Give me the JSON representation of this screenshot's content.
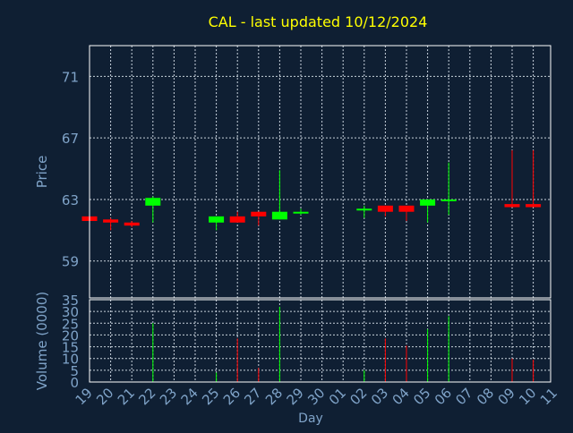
{
  "title": "CAL - last updated 10/12/2024",
  "colors": {
    "background": "#0f1f33",
    "title": "#ffff00",
    "axis_text": "#7fa3c8",
    "grid": "#c8d2dc",
    "frame": "#ffffff",
    "up": "#00ff00",
    "down": "#ff0000"
  },
  "chart_data": [
    {
      "type": "candlestick",
      "title": "CAL - last updated 10/12/2024",
      "xlabel": "",
      "ylabel": "Price",
      "ylim": [
        56.6,
        73.0
      ],
      "yticks": [
        59,
        63,
        67,
        71
      ],
      "grid": true,
      "categories": [
        "19",
        "20",
        "21",
        "22",
        "23",
        "24",
        "25",
        "26",
        "27",
        "28",
        "29",
        "30",
        "01",
        "02",
        "03",
        "04",
        "05",
        "06",
        "07",
        "08",
        "09",
        "10",
        "11"
      ],
      "candles": [
        {
          "day": "19",
          "open": 61.9,
          "close": 61.6,
          "high": 61.9,
          "low": 61.6
        },
        {
          "day": "20",
          "open": 61.7,
          "close": 61.5,
          "high": 61.8,
          "low": 61.0
        },
        {
          "day": "21",
          "open": 61.5,
          "close": 61.3,
          "high": 61.6,
          "low": 61.2
        },
        {
          "day": "22",
          "open": 62.6,
          "close": 63.1,
          "high": 63.2,
          "low": 61.5
        },
        {
          "day": "25",
          "open": 61.5,
          "close": 61.9,
          "high": 61.9,
          "low": 61.0
        },
        {
          "day": "26",
          "open": 61.9,
          "close": 61.5,
          "high": 62.2,
          "low": 61.5
        },
        {
          "day": "27",
          "open": 62.2,
          "close": 61.9,
          "high": 62.2,
          "low": 61.3
        },
        {
          "day": "28",
          "open": 61.7,
          "close": 62.2,
          "high": 64.9,
          "low": 61.7
        },
        {
          "day": "29",
          "open": 62.1,
          "close": 62.2,
          "high": 62.4,
          "low": 62.0
        },
        {
          "day": "02",
          "open": 62.3,
          "close": 62.4,
          "high": 62.6,
          "low": 61.8
        },
        {
          "day": "03",
          "open": 62.6,
          "close": 62.2,
          "high": 62.6,
          "low": 61.9
        },
        {
          "day": "04",
          "open": 62.6,
          "close": 62.2,
          "high": 62.6,
          "low": 61.6
        },
        {
          "day": "05",
          "open": 62.6,
          "close": 63.0,
          "high": 63.0,
          "low": 61.5
        },
        {
          "day": "06",
          "open": 62.9,
          "close": 63.0,
          "high": 65.4,
          "low": 62.0
        },
        {
          "day": "09",
          "open": 62.7,
          "close": 62.5,
          "high": 66.2,
          "low": 62.5
        },
        {
          "day": "10",
          "open": 62.7,
          "close": 62.5,
          "high": 66.2,
          "low": 62.5
        }
      ]
    },
    {
      "type": "bar",
      "xlabel": "Day",
      "ylabel": "Volume (0000)",
      "ylim": [
        0,
        35
      ],
      "yticks": [
        0,
        5,
        10,
        15,
        20,
        25,
        30,
        35
      ],
      "grid": true,
      "categories": [
        "19",
        "20",
        "21",
        "22",
        "23",
        "24",
        "25",
        "26",
        "27",
        "28",
        "29",
        "30",
        "01",
        "02",
        "03",
        "04",
        "05",
        "06",
        "07",
        "08",
        "09",
        "10",
        "11"
      ],
      "bars": [
        {
          "day": "22",
          "value": 25,
          "color": "up"
        },
        {
          "day": "25",
          "value": 4,
          "color": "up"
        },
        {
          "day": "26",
          "value": 18.5,
          "color": "down"
        },
        {
          "day": "27",
          "value": 6,
          "color": "down"
        },
        {
          "day": "28",
          "value": 32,
          "color": "up"
        },
        {
          "day": "02",
          "value": 5,
          "color": "up"
        },
        {
          "day": "03",
          "value": 18.5,
          "color": "down"
        },
        {
          "day": "04",
          "value": 15.5,
          "color": "down"
        },
        {
          "day": "05",
          "value": 22.5,
          "color": "up"
        },
        {
          "day": "06",
          "value": 28,
          "color": "up"
        },
        {
          "day": "09",
          "value": 10,
          "color": "down"
        },
        {
          "day": "10",
          "value": 9.5,
          "color": "down"
        }
      ]
    }
  ]
}
